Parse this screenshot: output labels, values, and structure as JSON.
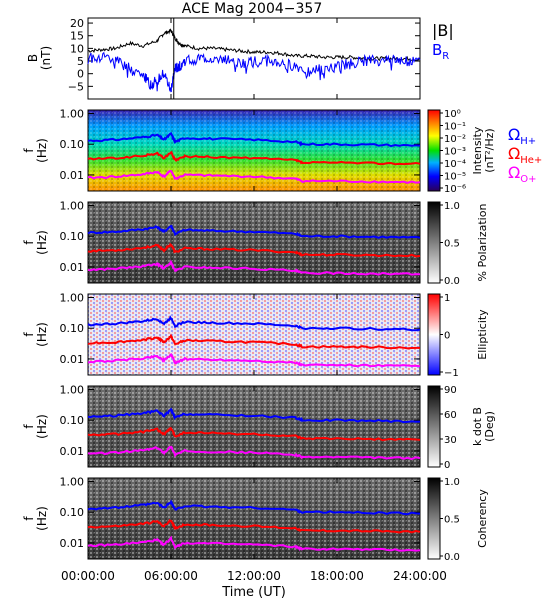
{
  "chart_data": {
    "type": "heatmap",
    "title": "ACE Mag 2004−357",
    "xlabel": "Time (UT)",
    "x_ticks": [
      "00:00:00",
      "06:00:00",
      "12:00:00",
      "18:00:00",
      "24:00:00"
    ],
    "x_range_hours": [
      0,
      24
    ],
    "line_panel": {
      "type": "line",
      "ylabel": "B\n(nT)",
      "ylim": [
        -10,
        22
      ],
      "y_ticks": [
        "20",
        "15",
        "10",
        "5",
        "0",
        "−5"
      ],
      "series": [
        {
          "name": "|B|",
          "color": "#000000",
          "x": [
            0,
            1,
            2,
            3,
            4,
            5,
            5.5,
            6,
            6.3,
            6.6,
            7,
            8,
            9,
            10,
            11,
            12,
            13,
            14,
            15,
            16,
            17,
            18,
            19,
            20,
            21,
            22,
            23,
            24
          ],
          "y": [
            9,
            9.5,
            10,
            12,
            11,
            13,
            16,
            17,
            14,
            12,
            11,
            10,
            10,
            9.5,
            9,
            8.5,
            8.5,
            8,
            7,
            7,
            6.5,
            6.5,
            6.5,
            6,
            6,
            6,
            6,
            5.5
          ]
        },
        {
          "name": "B",
          "subscript": "R",
          "color": "#0000ff",
          "x": [
            0,
            1,
            2,
            3,
            4,
            4.5,
            5,
            5.5,
            6,
            6.3,
            6.6,
            7,
            8,
            9,
            10,
            11,
            12,
            13,
            14,
            15,
            16,
            17,
            18,
            19,
            20,
            21,
            22,
            23,
            24
          ],
          "y": [
            6,
            7,
            5,
            2,
            -1,
            -4,
            -3,
            0,
            -7,
            2,
            3,
            5,
            6,
            6,
            5.5,
            4,
            5,
            5,
            4,
            3,
            1,
            2,
            3,
            4,
            5,
            5,
            5.5,
            5,
            5.5
          ]
        }
      ]
    },
    "spectral_panels": [
      {
        "name": "intensity",
        "ylabel": "f\n(Hz)",
        "colorbar_label": "Intensity\n(nT²/Hz)",
        "colormap": "rainbow",
        "colorbar_ticks": [
          "10⁰",
          "10⁻¹",
          "10⁻²",
          "10⁻³",
          "10⁻⁴",
          "10⁻⁵",
          "10⁻⁶"
        ]
      },
      {
        "name": "polarization",
        "ylabel": "f\n(Hz)",
        "colorbar_label": "% Polarization",
        "colormap": "gray",
        "colorbar_ticks": [
          "1.0",
          "0.5",
          "0.0"
        ]
      },
      {
        "name": "ellipticity",
        "ylabel": "f\n(Hz)",
        "colorbar_label": "Ellipticity",
        "colormap": "blue-white-red",
        "colorbar_ticks": [
          "1",
          "0",
          "−1"
        ]
      },
      {
        "name": "k-dot-b",
        "ylabel": "f\n(Hz)",
        "colorbar_label": "k dot B\n(Deg)",
        "colormap": "gray",
        "colorbar_ticks": [
          "90",
          "60",
          "30",
          "0"
        ]
      },
      {
        "name": "coherency",
        "ylabel": "f\n(Hz)",
        "colorbar_label": "Coherency",
        "colormap": "gray",
        "colorbar_ticks": [
          "1.0",
          "0.5",
          "0.0"
        ]
      }
    ],
    "freq_axis": {
      "scale": "log",
      "ylim": [
        0.003,
        1.3
      ],
      "ticks": [
        "1.00",
        "0.10",
        "0.01"
      ]
    },
    "gyrofrequency_lines": [
      {
        "name": "Ω",
        "subscript": "H+",
        "color": "#0000ff",
        "x": [
          0,
          2,
          4,
          5,
          5.5,
          6,
          6.3,
          7,
          9,
          12,
          15,
          15.5,
          18,
          21,
          24
        ],
        "y": [
          0.13,
          0.14,
          0.17,
          0.2,
          0.14,
          0.22,
          0.12,
          0.16,
          0.15,
          0.14,
          0.12,
          0.1,
          0.1,
          0.095,
          0.09
        ]
      },
      {
        "name": "Ω",
        "subscript": "He+",
        "color": "#ff0000",
        "x": [
          0,
          2,
          4,
          5,
          5.5,
          6,
          6.3,
          7,
          9,
          12,
          15,
          15.5,
          18,
          21,
          24
        ],
        "y": [
          0.033,
          0.035,
          0.042,
          0.05,
          0.035,
          0.055,
          0.03,
          0.04,
          0.038,
          0.035,
          0.03,
          0.025,
          0.025,
          0.024,
          0.023
        ]
      },
      {
        "name": "Ω",
        "subscript": "O+",
        "color": "#ff00ff",
        "x": [
          0,
          2,
          4,
          5,
          5.5,
          6,
          6.3,
          7,
          9,
          12,
          15,
          15.5,
          18,
          21,
          24
        ],
        "y": [
          0.008,
          0.0088,
          0.0105,
          0.0125,
          0.0088,
          0.014,
          0.0075,
          0.01,
          0.0095,
          0.0088,
          0.0075,
          0.0063,
          0.0063,
          0.006,
          0.0058
        ]
      }
    ]
  }
}
